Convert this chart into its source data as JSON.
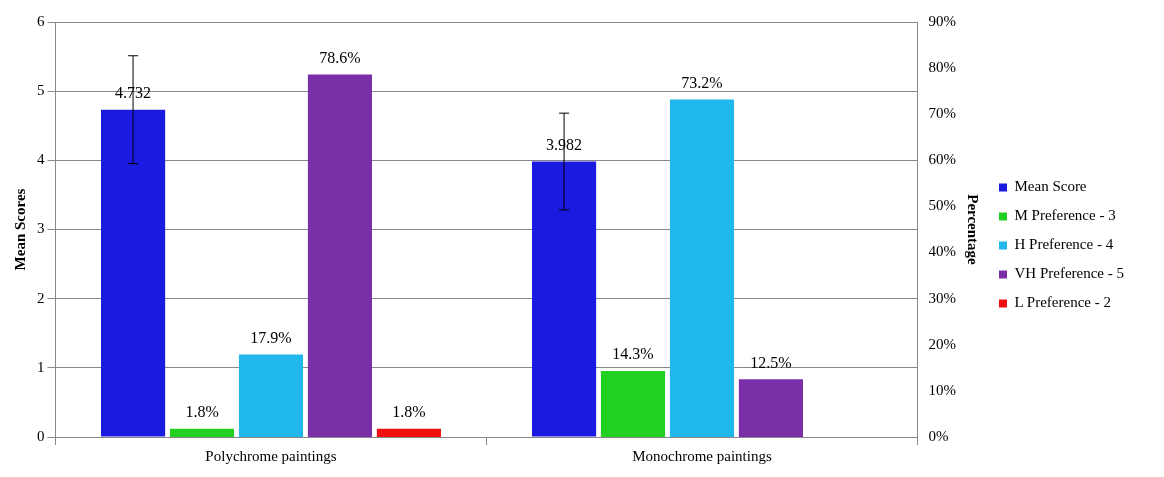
{
  "chart_data": {
    "type": "bar",
    "categories": [
      "Polychrome paintings",
      "Monochrome paintings"
    ],
    "ylabel": "Mean Scores",
    "y2label": "Percentage",
    "ylim": [
      0,
      6
    ],
    "yticks": [
      0,
      1,
      2,
      3,
      4,
      5,
      6
    ],
    "y2lim": [
      0,
      90
    ],
    "y2ticks": [
      {
        "value": 0,
        "label": "0%"
      },
      {
        "value": 10,
        "label": "10%"
      },
      {
        "value": 20,
        "label": "20%"
      },
      {
        "value": 30,
        "label": "30%"
      },
      {
        "value": 40,
        "label": "40%"
      },
      {
        "value": 50,
        "label": "50%"
      },
      {
        "value": 60,
        "label": "60%"
      },
      {
        "value": 70,
        "label": "70%"
      },
      {
        "value": 80,
        "label": "80%"
      },
      {
        "value": 90,
        "label": "90%"
      }
    ],
    "series": [
      {
        "name": "Mean Score",
        "color": "#1a1ae0",
        "values": [
          4.732,
          3.982
        ],
        "errors": [
          0.78,
          0.7
        ],
        "value_labels": [
          "4.732",
          "3.982"
        ]
      },
      {
        "name": "M Preference - 3",
        "color": "#22d022",
        "values": [
          1.8,
          14.3
        ],
        "axis": "y2",
        "value_labels": [
          "1.8%",
          "14.3%"
        ]
      },
      {
        "name": "H Preference - 4",
        "color": "#20b8ec",
        "values": [
          17.9,
          73.2
        ],
        "axis": "y2",
        "value_labels": [
          "17.9%",
          "73.2%"
        ]
      },
      {
        "name": "VH Preference - 5",
        "color": "#7a2ea8",
        "values": [
          78.6,
          12.5
        ],
        "axis": "y2",
        "value_labels": [
          "78.6%",
          "12.5%"
        ]
      },
      {
        "name": "L Preference - 2",
        "color": "#f01010",
        "values": [
          1.8,
          null
        ],
        "axis": "y2",
        "value_labels": [
          "1.8%",
          null
        ]
      }
    ],
    "grid": "y",
    "legend": "right"
  }
}
